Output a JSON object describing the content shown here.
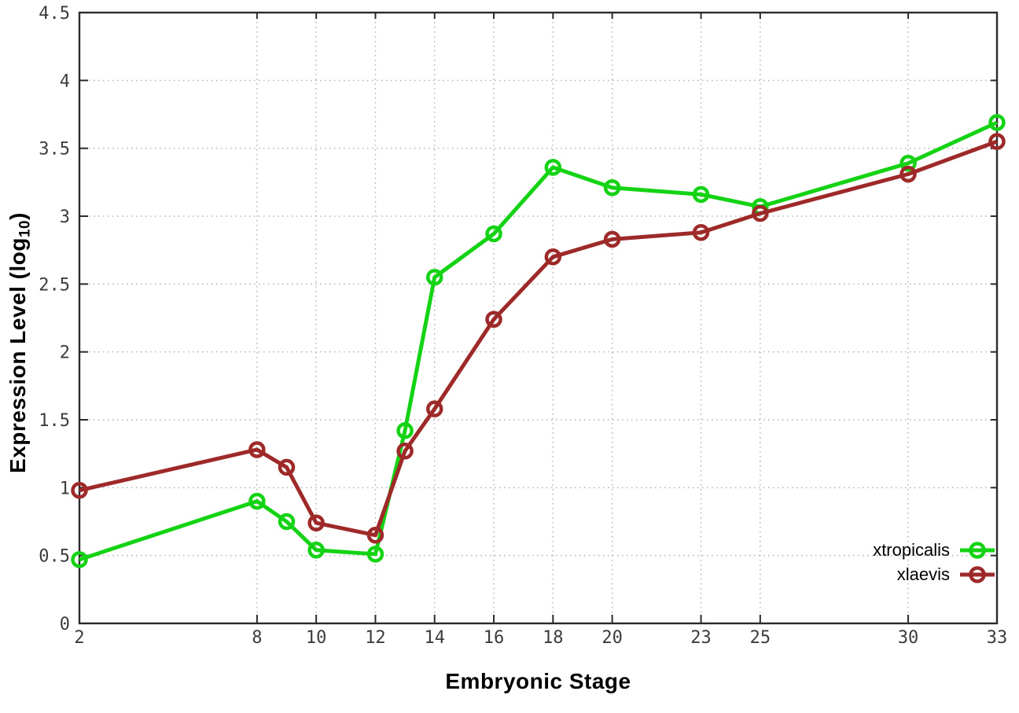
{
  "chart_data": {
    "type": "line",
    "title": "",
    "xlabel": "Embryonic Stage",
    "ylabel": "Expression Level (log10)",
    "ylabel_parts": {
      "pre": "Expression Level (log",
      "sub": "10",
      "post": ")"
    },
    "x": [
      2,
      8,
      9,
      10,
      12,
      13,
      14,
      16,
      18,
      20,
      23,
      25,
      30,
      33
    ],
    "series": [
      {
        "name": "xtropicalis",
        "color": "#14d314",
        "values": [
          0.47,
          0.9,
          0.75,
          0.54,
          0.51,
          1.42,
          2.55,
          2.87,
          3.36,
          3.21,
          3.16,
          3.07,
          3.39,
          3.69
        ]
      },
      {
        "name": "xlaevis",
        "color": "#9e2929",
        "values": [
          0.98,
          1.28,
          1.15,
          0.74,
          0.65,
          1.27,
          1.58,
          2.24,
          2.7,
          2.83,
          2.88,
          3.02,
          3.31,
          3.55
        ]
      }
    ],
    "xlim": [
      2,
      33
    ],
    "ylim": [
      0,
      4.5
    ],
    "xticks": [
      2,
      8,
      10,
      12,
      14,
      16,
      18,
      20,
      23,
      25,
      30,
      33
    ],
    "yticks": [
      0,
      0.5,
      1,
      1.5,
      2,
      2.5,
      3,
      3.5,
      4,
      4.5
    ],
    "grid": true,
    "legend_position": "inside-bottom-right",
    "style": {
      "marker": "open-circle",
      "grid_color": "#b3b3b3",
      "border_color": "#2b2b2b",
      "tick_text_color": "#3c3c3c"
    }
  }
}
